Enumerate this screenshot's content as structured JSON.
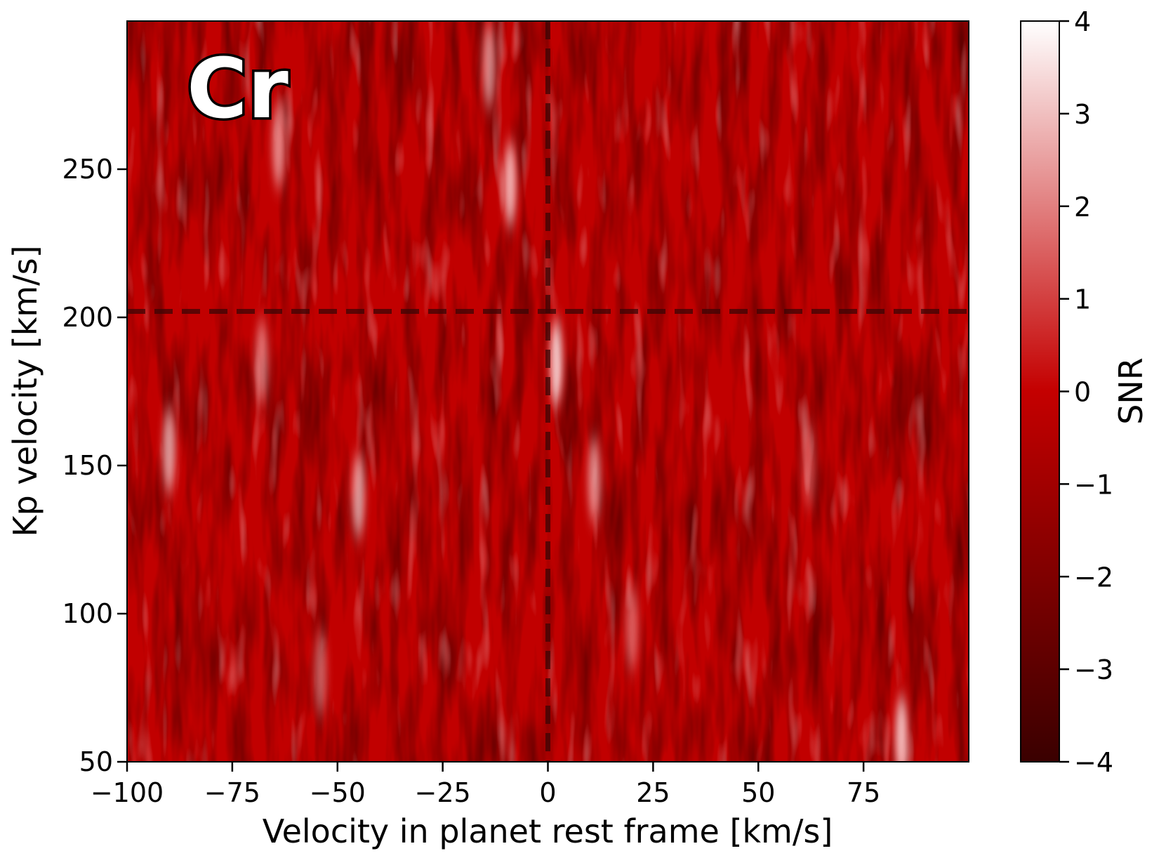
{
  "chart_data": {
    "type": "heatmap",
    "title": "",
    "annotation": "Cr",
    "xlabel": "Velocity in planet rest frame [km/s]",
    "ylabel": "Kp velocity [km/s]",
    "xlim": [
      -100,
      100
    ],
    "ylim": [
      50,
      300
    ],
    "xticks": [
      -100,
      -75,
      -50,
      -25,
      0,
      25,
      50,
      75
    ],
    "xtick_labels": [
      "−100",
      "−75",
      "−50",
      "−25",
      "0",
      "25",
      "50",
      "75"
    ],
    "yticks": [
      50,
      100,
      150,
      200,
      250
    ],
    "ytick_labels": [
      "50",
      "100",
      "150",
      "200",
      "250"
    ],
    "reference_lines": {
      "x": 0,
      "y": 202
    },
    "colorbar": {
      "label": "SNR",
      "range": [
        -4,
        4
      ],
      "ticks": [
        4,
        3,
        2,
        1,
        0,
        -1,
        -2,
        -3,
        -4
      ],
      "tick_labels": [
        "4",
        "3",
        "2",
        "1",
        "0",
        "−1",
        "−2",
        "−3",
        "−4"
      ],
      "colors": [
        "#3a0000",
        "#c40000",
        "#ffffff"
      ]
    },
    "bright_features": [
      {
        "x": -90,
        "y": 155,
        "snr": 3.0
      },
      {
        "x": -64,
        "y": 258,
        "snr": 2.8
      },
      {
        "x": -45,
        "y": 140,
        "snr": 3.0
      },
      {
        "x": -68,
        "y": 185,
        "snr": 2.6
      },
      {
        "x": -9,
        "y": 245,
        "snr": 3.2
      },
      {
        "x": -14,
        "y": 285,
        "snr": 2.8
      },
      {
        "x": 2,
        "y": 185,
        "snr": 3.4
      },
      {
        "x": 11,
        "y": 145,
        "snr": 2.8
      },
      {
        "x": 20,
        "y": 95,
        "snr": 2.4
      },
      {
        "x": 84,
        "y": 58,
        "snr": 3.3
      },
      {
        "x": -54,
        "y": 80,
        "snr": 2.4
      },
      {
        "x": 62,
        "y": 150,
        "snr": 2.2
      }
    ]
  }
}
